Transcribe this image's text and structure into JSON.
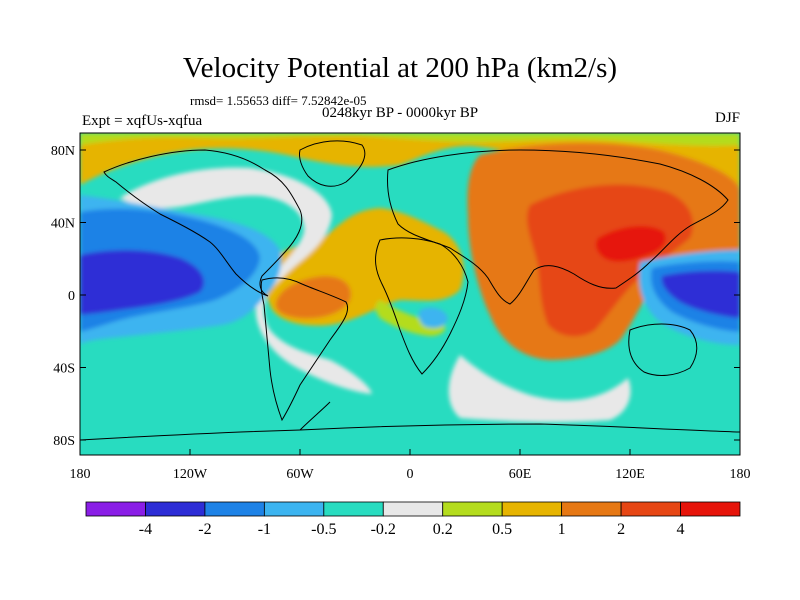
{
  "title": "Velocity Potential at 200 hPa (km2/s)",
  "stats": "rmsd= 1.55653 diff= 7.52842e-05",
  "experiment": "Expt = xqfUs-xqfua",
  "period": "0248kyr BP - 0000kyr BP",
  "season": "DJF",
  "y_ticks": [
    "80N",
    "40N",
    "0",
    "40S",
    "80S"
  ],
  "x_ticks": [
    "180",
    "120W",
    "60W",
    "0",
    "60E",
    "120E",
    "180"
  ],
  "colorbar": {
    "colors": [
      "#8a1ee6",
      "#2d2dd6",
      "#1e82e6",
      "#3cb4f0",
      "#28dcc0",
      "#e8e8e8",
      "#b4dc1e",
      "#e6b400",
      "#e67814",
      "#e64614",
      "#e6140a"
    ],
    "labels": [
      "-4",
      "-2",
      "-1",
      "-0.5",
      "-0.2",
      "0.2",
      "0.5",
      "1",
      "2",
      "4"
    ]
  },
  "legend_colors": {
    "c_n2": "#2d2dd6",
    "c_n1": "#1e82e6",
    "c_n05": "#3cb4f0",
    "c_n02": "#28dcc0",
    "c_0": "#e8e8e8",
    "c_02": "#b4dc1e",
    "c_05": "#e6b400",
    "c_1": "#e67814",
    "c_2": "#e64614",
    "c_4": "#e6140a"
  }
}
